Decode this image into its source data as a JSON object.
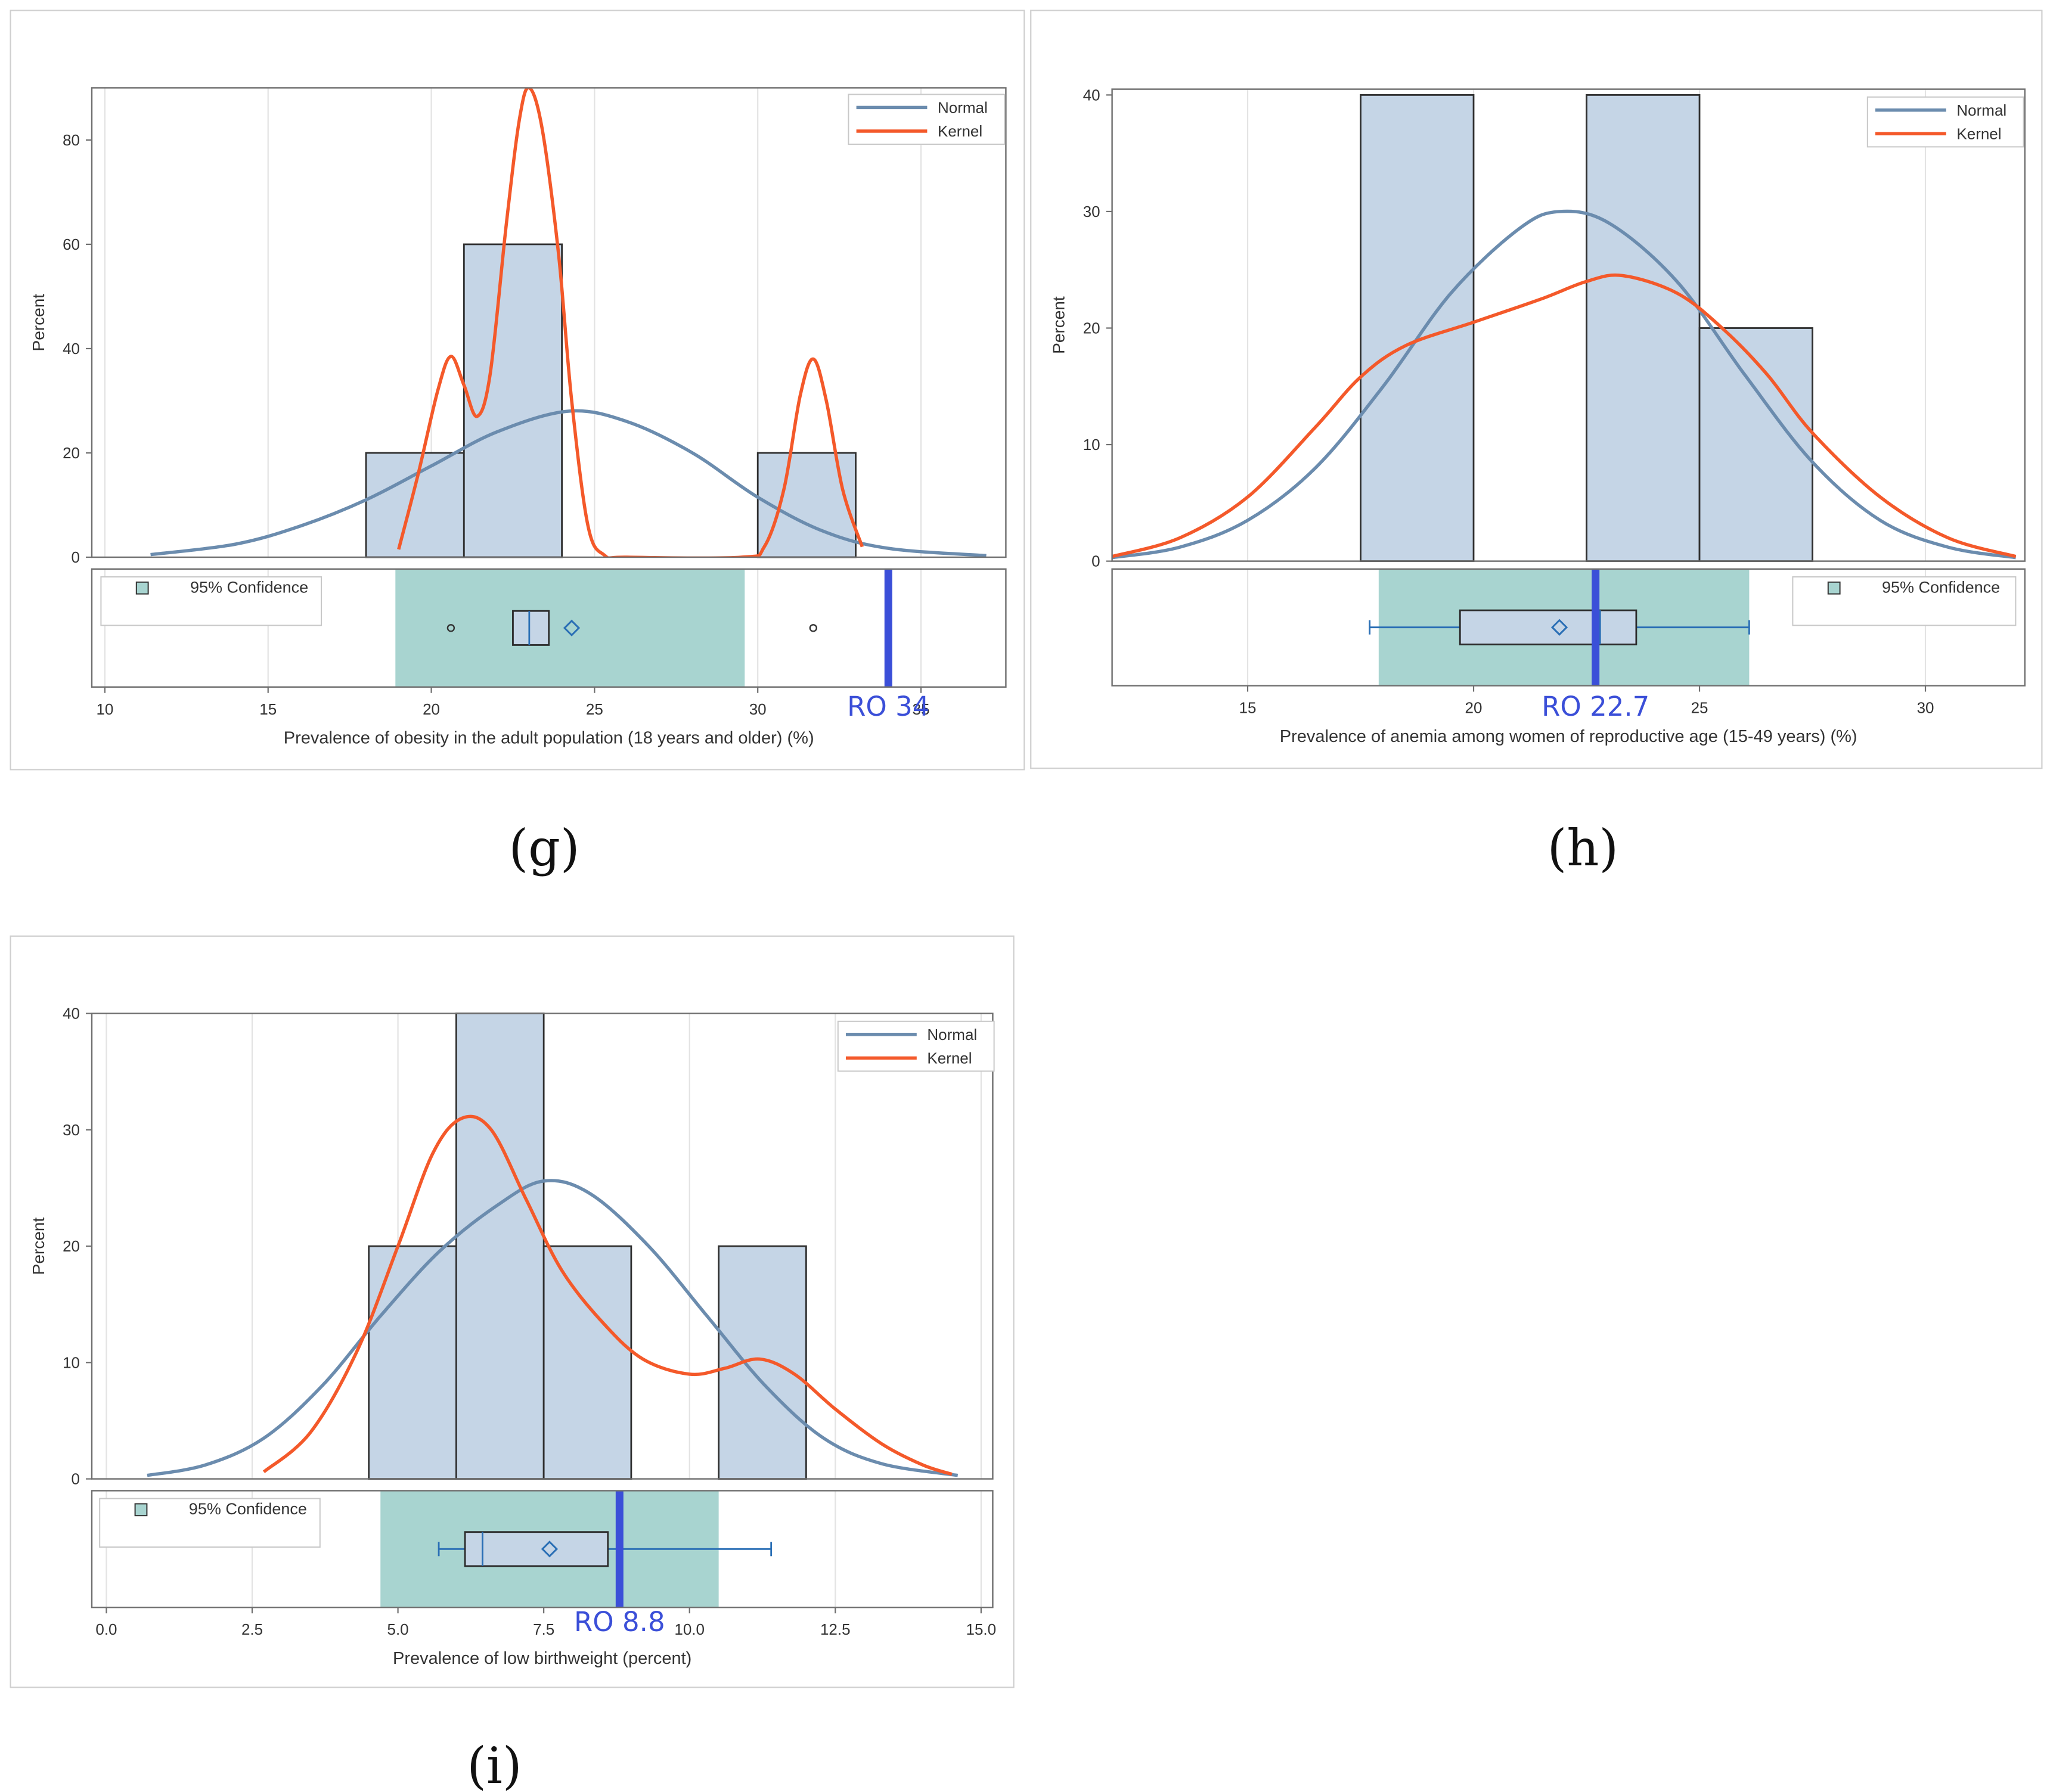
{
  "colors": {
    "bar_fill": "#c5d5e6",
    "bar_stroke": "#2f2f2f",
    "normal": "#6b8cae",
    "kernel": "#f4592a",
    "confidence": "#a8d4d0",
    "ro_line": "#3b4fd8",
    "box_stroke": "#2a6fb5",
    "frame": "#6f6f6f",
    "grid": "#e3e3e3"
  },
  "chart_data": [
    {
      "panel": "(g)",
      "type": "bar",
      "histogram": {
        "bins": [
          [
            18,
            21
          ],
          [
            21,
            24
          ],
          [
            30,
            33
          ]
        ],
        "values": [
          20,
          60,
          20
        ]
      },
      "xlabel": "Prevalence of obesity in the adult population (18 years and older) (%)",
      "ylabel": "Percent",
      "xlim": [
        9.6,
        37.6
      ],
      "ylim": [
        0,
        90
      ],
      "xticks": [
        10,
        15,
        20,
        25,
        30,
        35
      ],
      "xtick_labels": [
        "10",
        "15",
        "20",
        "25",
        "30",
        "35"
      ],
      "yticks": [
        0,
        20,
        40,
        60,
        80
      ],
      "ytick_labels": [
        "0",
        "20",
        "40",
        "60",
        "80"
      ],
      "series": [
        {
          "name": "Normal",
          "points": [
            [
              11.4,
              0.5
            ],
            [
              14,
              2.5
            ],
            [
              16,
              6
            ],
            [
              18,
              11
            ],
            [
              20,
              17.5
            ],
            [
              22,
              24
            ],
            [
              24.2,
              28
            ],
            [
              26,
              26
            ],
            [
              28,
              20
            ],
            [
              30,
              11.5
            ],
            [
              32,
              5
            ],
            [
              34,
              1.7
            ],
            [
              37,
              0.3
            ]
          ]
        },
        {
          "name": "Kernel",
          "points": [
            [
              19,
              1.5
            ],
            [
              19.6,
              16
            ],
            [
              20.2,
              32
            ],
            [
              20.6,
              38.5
            ],
            [
              21,
              33
            ],
            [
              21.4,
              27
            ],
            [
              21.8,
              35
            ],
            [
              22.3,
              64
            ],
            [
              22.7,
              84
            ],
            [
              23,
              90
            ],
            [
              23.4,
              82
            ],
            [
              23.9,
              58
            ],
            [
              24.3,
              30
            ],
            [
              24.8,
              6
            ],
            [
              25.3,
              0.4
            ],
            [
              26,
              0
            ],
            [
              29.5,
              0
            ],
            [
              30.2,
              2
            ],
            [
              30.8,
              13
            ],
            [
              31.3,
              31
            ],
            [
              31.7,
              38
            ],
            [
              32.1,
              30
            ],
            [
              32.6,
              13
            ],
            [
              33.2,
              2
            ]
          ]
        }
      ],
      "legend": [
        "Normal",
        "Kernel"
      ],
      "legend_position": "top-right",
      "boxplot": {
        "confidence_band": [
          18.9,
          29.6
        ],
        "q1": 22.5,
        "median": 23.0,
        "q3": 23.6,
        "mean": 24.3,
        "whiskers": null,
        "outliers": [
          20.6,
          31.7
        ],
        "confidence_label": "95% Confidence",
        "legend_position": "left"
      },
      "reference": {
        "value": 34,
        "label": "RO 34"
      }
    },
    {
      "panel": "(h)",
      "type": "bar",
      "histogram": {
        "bins": [
          [
            17.5,
            20
          ],
          [
            22.5,
            25
          ],
          [
            25,
            27.5
          ]
        ],
        "values": [
          40,
          40,
          20
        ]
      },
      "xlabel": "Prevalence of anemia among women of reproductive age (15-49 years) (%)",
      "ylabel": "Percent",
      "xlim": [
        12,
        32.2
      ],
      "ylim": [
        0,
        40.5
      ],
      "xticks": [
        15,
        20,
        25,
        30
      ],
      "xtick_labels": [
        "15",
        "20",
        "25",
        "30"
      ],
      "yticks": [
        0,
        10,
        20,
        30,
        40
      ],
      "ytick_labels": [
        "0",
        "10",
        "20",
        "30",
        "40"
      ],
      "series": [
        {
          "name": "Normal",
          "points": [
            [
              12,
              0.3
            ],
            [
              13.5,
              1.2
            ],
            [
              15,
              3.5
            ],
            [
              16.5,
              8
            ],
            [
              18,
              15
            ],
            [
              19.5,
              23
            ],
            [
              21,
              28.5
            ],
            [
              21.9,
              30
            ],
            [
              23,
              29
            ],
            [
              24.5,
              24
            ],
            [
              26,
              16
            ],
            [
              27.5,
              8.5
            ],
            [
              29,
              3.5
            ],
            [
              30.5,
              1.2
            ],
            [
              32,
              0.3
            ]
          ]
        },
        {
          "name": "Kernel",
          "points": [
            [
              12,
              0.4
            ],
            [
              13.5,
              2
            ],
            [
              15,
              5.5
            ],
            [
              16.5,
              11.5
            ],
            [
              17.5,
              15.8
            ],
            [
              18.5,
              18.5
            ],
            [
              20,
              20.5
            ],
            [
              21.5,
              22.5
            ],
            [
              22.5,
              24
            ],
            [
              23.3,
              24.5
            ],
            [
              24.5,
              23
            ],
            [
              25.5,
              20
            ],
            [
              26.5,
              16
            ],
            [
              27.5,
              11
            ],
            [
              29,
              5.5
            ],
            [
              30.5,
              2
            ],
            [
              32,
              0.4
            ]
          ]
        }
      ],
      "legend": [
        "Normal",
        "Kernel"
      ],
      "legend_position": "top-right",
      "boxplot": {
        "confidence_band": [
          17.9,
          26.1
        ],
        "q1": 19.7,
        "median": 22.8,
        "q3": 23.6,
        "mean": 21.9,
        "whiskers": [
          17.7,
          26.1
        ],
        "outliers": [],
        "confidence_label": "95% Confidence",
        "legend_position": "right"
      },
      "reference": {
        "value": 22.7,
        "label": "RO  22.7"
      }
    },
    {
      "panel": "(i)",
      "type": "bar",
      "histogram": {
        "bins": [
          [
            4.5,
            6
          ],
          [
            6,
            7.5
          ],
          [
            7.5,
            9
          ],
          [
            10.5,
            12
          ]
        ],
        "values": [
          20,
          40,
          20,
          20
        ]
      },
      "xlabel": "Prevalence of low birthweight (percent)",
      "ylabel": "Percent",
      "xlim": [
        -0.25,
        15.2
      ],
      "ylim": [
        0,
        40
      ],
      "xticks": [
        0,
        2.5,
        5,
        7.5,
        10,
        12.5,
        15
      ],
      "xtick_labels": [
        "0.0",
        "2.5",
        "5.0",
        "7.5",
        "10.0",
        "12.5",
        "15.0"
      ],
      "yticks": [
        0,
        10,
        20,
        30,
        40
      ],
      "ytick_labels": [
        "0",
        "10",
        "20",
        "30",
        "40"
      ],
      "series": [
        {
          "name": "Normal",
          "points": [
            [
              0.7,
              0.3
            ],
            [
              1.7,
              1.2
            ],
            [
              2.7,
              3.5
            ],
            [
              3.7,
              8
            ],
            [
              4.7,
              14
            ],
            [
              5.7,
              19.5
            ],
            [
              6.7,
              23.5
            ],
            [
              7.5,
              25.6
            ],
            [
              8.3,
              24.5
            ],
            [
              9.3,
              20
            ],
            [
              10.3,
              14
            ],
            [
              11.3,
              8
            ],
            [
              12.3,
              3.5
            ],
            [
              13.3,
              1.3
            ],
            [
              14.6,
              0.3
            ]
          ]
        },
        {
          "name": "Kernel",
          "points": [
            [
              2.7,
              0.6
            ],
            [
              3.5,
              4
            ],
            [
              4.3,
              11
            ],
            [
              5,
              20
            ],
            [
              5.6,
              28
            ],
            [
              6.1,
              31
            ],
            [
              6.6,
              30
            ],
            [
              7.2,
              24
            ],
            [
              7.8,
              18
            ],
            [
              8.5,
              13.5
            ],
            [
              9.2,
              10.3
            ],
            [
              10,
              9
            ],
            [
              10.6,
              9.5
            ],
            [
              11.2,
              10.3
            ],
            [
              11.8,
              9
            ],
            [
              12.5,
              6
            ],
            [
              13.3,
              3
            ],
            [
              14,
              1.2
            ],
            [
              14.5,
              0.4
            ]
          ]
        }
      ],
      "legend": [
        "Normal",
        "Kernel"
      ],
      "legend_position": "top-right",
      "boxplot": {
        "confidence_band": [
          4.7,
          10.5
        ],
        "q1": 6.15,
        "median": 6.45,
        "q3": 8.6,
        "mean": 7.6,
        "whiskers": [
          5.7,
          11.4
        ],
        "outliers": [],
        "confidence_label": "95% Confidence",
        "legend_position": "left"
      },
      "reference": {
        "value": 8.8,
        "label": "RO 8.8"
      }
    }
  ]
}
